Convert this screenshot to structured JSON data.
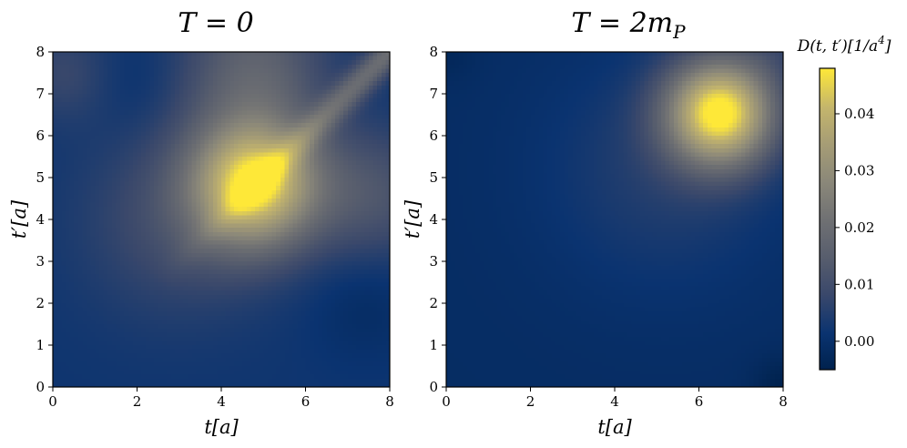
{
  "chart_data": [
    {
      "type": "heatmap",
      "title": "T = 0",
      "xlabel": "t[a]",
      "ylabel": "t′[a]",
      "xlim": [
        0,
        8
      ],
      "ylim": [
        0,
        8
      ],
      "xticks": [
        "0",
        "2",
        "4",
        "6",
        "8"
      ],
      "yticks": [
        "0",
        "1",
        "2",
        "3",
        "4",
        "5",
        "6",
        "7",
        "8"
      ],
      "grid": false,
      "peaks": [
        {
          "t": 4.8,
          "t_prime": 4.85,
          "value": 0.045
        },
        {
          "t": 7.4,
          "t_prime": 1.9,
          "value": -0.003
        },
        {
          "t": 1.9,
          "t_prime": 7.25,
          "value": -0.002
        }
      ],
      "diagonal_ridge_value": 0.018,
      "background_value": 0.002
    },
    {
      "type": "heatmap",
      "title": "T = 2m",
      "title_subscript": "P",
      "xlabel": "t[a]",
      "ylabel": "t′[a]",
      "xlim": [
        0,
        8
      ],
      "ylim": [
        0,
        8
      ],
      "xticks": [
        "0",
        "2",
        "4",
        "6",
        "8"
      ],
      "yticks": [
        "0",
        "1",
        "2",
        "3",
        "4",
        "5",
        "6",
        "7",
        "8"
      ],
      "grid": false,
      "peaks": [
        {
          "t": 6.5,
          "t_prime": 6.55,
          "value": 0.047
        }
      ],
      "background_value": -0.001
    }
  ],
  "colorbar": {
    "label": "D(t, t′)[1/a",
    "label_superscript": "4",
    "label_close": "]",
    "colormap": "cividis",
    "range": [
      -0.005,
      0.048
    ],
    "ticks": [
      {
        "value": 0.0,
        "label": "0.00"
      },
      {
        "value": 0.01,
        "label": "0.01"
      },
      {
        "value": 0.02,
        "label": "0.02"
      },
      {
        "value": 0.03,
        "label": "0.03"
      },
      {
        "value": 0.04,
        "label": "0.04"
      }
    ]
  }
}
